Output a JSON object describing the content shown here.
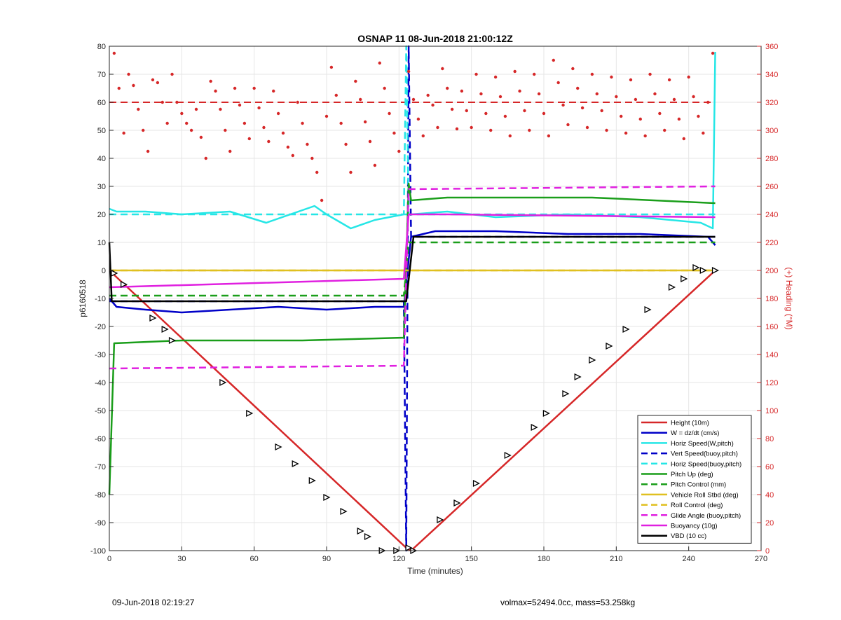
{
  "chart_data": {
    "type": "line",
    "title": "OSNAP 11 08-Jun-2018 21:00:12Z",
    "xlabel": "Time (minutes)",
    "ylabel": "p6160518",
    "y2label": "(+) Heading (°M)",
    "xlim": [
      0,
      270
    ],
    "ylim": [
      -100,
      80
    ],
    "y2lim": [
      0,
      360
    ],
    "xticks": [
      0,
      30,
      60,
      90,
      120,
      150,
      180,
      210,
      240,
      270
    ],
    "yticks": [
      -100,
      -90,
      -80,
      -70,
      -60,
      -50,
      -40,
      -30,
      -20,
      -10,
      0,
      10,
      20,
      30,
      40,
      50,
      60,
      70,
      80
    ],
    "y2ticks": [
      0,
      20,
      40,
      60,
      80,
      100,
      120,
      140,
      160,
      180,
      200,
      220,
      240,
      260,
      280,
      300,
      320,
      340,
      360
    ],
    "grid": true,
    "legend_position": "bottom-right",
    "series": [
      {
        "name": "Height (10m)",
        "color": "#d62728",
        "style": "solid",
        "x": [
          0,
          123,
          125,
          251
        ],
        "y": [
          0,
          -99,
          -100,
          0
        ]
      },
      {
        "name": "W = dz/dt (cm/s)",
        "color": "#0000c8",
        "style": "solid",
        "x": [
          0,
          3,
          15,
          30,
          50,
          70,
          90,
          110,
          122,
          125,
          135,
          160,
          190,
          220,
          248,
          251
        ],
        "y": [
          -10,
          -13,
          -14,
          -15,
          -14,
          -13,
          -14,
          -13,
          -13,
          12,
          14,
          14,
          13,
          13,
          12,
          9
        ]
      },
      {
        "name": "Horiz Speed(W,pitch)",
        "color": "#26e6e6",
        "style": "solid",
        "x": [
          0,
          3,
          15,
          30,
          50,
          65,
          85,
          90,
          100,
          110,
          122,
          125,
          140,
          160,
          190,
          220,
          245,
          250,
          251
        ],
        "y": [
          22,
          21,
          21,
          20,
          21,
          17,
          23,
          20,
          15,
          18,
          20,
          20,
          21,
          19,
          20,
          19,
          17,
          15,
          78
        ]
      },
      {
        "name": "Vert Speed(buoy,pitch)",
        "color": "#0000c8",
        "style": "dashed",
        "x": [
          0,
          122,
          123,
          124,
          125,
          251
        ],
        "y": [
          -11,
          -11,
          -100,
          80,
          12,
          12
        ]
      },
      {
        "name": "Horiz Speed(buoy,pitch)",
        "color": "#26e6e6",
        "style": "dashed",
        "x": [
          0,
          122,
          123,
          124,
          251
        ],
        "y": [
          20,
          20,
          80,
          20,
          20
        ]
      },
      {
        "name": "Pitch Up (deg)",
        "color": "#1a9e1a",
        "style": "solid",
        "x": [
          0,
          2,
          30,
          80,
          122,
          124,
          125,
          140,
          200,
          251
        ],
        "y": [
          -80,
          -26,
          -25,
          -25,
          -24,
          31,
          25,
          26,
          26,
          24
        ]
      },
      {
        "name": "Pitch Control (mm)",
        "color": "#1a9e1a",
        "style": "dashed",
        "x": [
          0,
          122,
          124,
          251
        ],
        "y": [
          -9,
          -9,
          10,
          10
        ]
      },
      {
        "name": "Vehicle Roll Stbd (deg)",
        "color": "#e0c020",
        "style": "solid",
        "x": [
          0,
          50,
          100,
          122,
          125,
          180,
          251
        ],
        "y": [
          0,
          0,
          0,
          0,
          0,
          0,
          0
        ]
      },
      {
        "name": "Roll Control (deg)",
        "color": "#e0c020",
        "style": "dashed",
        "x": [
          0,
          122,
          125,
          251
        ],
        "y": [
          0,
          0,
          0,
          0
        ]
      },
      {
        "name": "Glide Angle (buoy,pitch)",
        "color": "#e020e0",
        "style": "dashed",
        "x": [
          0,
          122,
          124,
          251
        ],
        "y": [
          -35,
          -34,
          29,
          30
        ]
      },
      {
        "name": "Buoyancy (10g)",
        "color": "#e020e0",
        "style": "solid",
        "x": [
          0,
          122,
          124,
          140,
          251
        ],
        "y": [
          -6,
          -3,
          20,
          20,
          19
        ]
      },
      {
        "name": "VBD (10 cc)",
        "color": "#000000",
        "style": "solid",
        "x": [
          0,
          1,
          123,
          126,
          251
        ],
        "y": [
          10,
          -11,
          -11,
          12,
          12
        ]
      }
    ],
    "heading_reference": {
      "value": 320,
      "color": "#d62728",
      "style": "dashed",
      "axis": "right"
    },
    "heading_points": {
      "color": "#d62728",
      "axis": "right",
      "x": [
        2,
        4,
        6,
        8,
        10,
        12,
        14,
        16,
        18,
        20,
        22,
        24,
        26,
        28,
        30,
        32,
        34,
        36,
        38,
        40,
        42,
        44,
        46,
        48,
        50,
        52,
        54,
        56,
        58,
        60,
        62,
        64,
        66,
        68,
        70,
        72,
        74,
        76,
        78,
        80,
        82,
        84,
        86,
        88,
        90,
        92,
        94,
        96,
        98,
        100,
        102,
        104,
        106,
        108,
        110,
        112,
        114,
        116,
        118,
        120,
        124,
        126,
        128,
        130,
        132,
        134,
        136,
        138,
        140,
        142,
        144,
        146,
        148,
        150,
        152,
        154,
        156,
        158,
        160,
        162,
        164,
        166,
        168,
        170,
        172,
        174,
        176,
        178,
        180,
        182,
        184,
        186,
        188,
        190,
        192,
        194,
        196,
        198,
        200,
        202,
        204,
        206,
        208,
        210,
        212,
        214,
        216,
        218,
        220,
        222,
        224,
        226,
        228,
        230,
        232,
        234,
        236,
        238,
        240,
        242,
        244,
        246,
        248,
        250
      ],
      "y": [
        355,
        330,
        298,
        340,
        332,
        315,
        300,
        285,
        336,
        334,
        320,
        305,
        340,
        320,
        312,
        305,
        300,
        315,
        295,
        280,
        335,
        328,
        315,
        300,
        285,
        330,
        318,
        305,
        294,
        330,
        316,
        302,
        292,
        328,
        312,
        298,
        288,
        282,
        320,
        305,
        290,
        280,
        270,
        250,
        310,
        345,
        325,
        305,
        290,
        270,
        335,
        322,
        306,
        292,
        275,
        348,
        330,
        312,
        298,
        285,
        342,
        322,
        308,
        296,
        325,
        318,
        302,
        344,
        330,
        315,
        301,
        328,
        314,
        302,
        340,
        326,
        312,
        300,
        338,
        324,
        310,
        296,
        342,
        328,
        314,
        300,
        340,
        326,
        312,
        296,
        350,
        334,
        318,
        304,
        344,
        330,
        316,
        302,
        340,
        326,
        314,
        300,
        338,
        324,
        310,
        298,
        336,
        322,
        308,
        296,
        340,
        326,
        312,
        300,
        336,
        322,
        308,
        294,
        338,
        324,
        310,
        298,
        320,
        355
      ]
    },
    "markers": {
      "color": "#000000",
      "x": [
        2,
        6,
        18,
        23,
        26,
        47,
        58,
        70,
        77,
        84,
        90,
        97,
        104,
        107,
        113,
        119,
        124,
        126,
        137,
        144,
        152,
        165,
        176,
        181,
        189,
        194,
        200,
        207,
        214,
        223,
        233,
        238,
        243,
        246,
        251
      ],
      "y": [
        -1,
        -5,
        -17,
        -21,
        -25,
        -40,
        -51,
        -63,
        -69,
        -75,
        -81,
        -86,
        -93,
        -95,
        -100,
        -100,
        -99,
        -100,
        -89,
        -83,
        -76,
        -66,
        -56,
        -51,
        -44,
        -38,
        -32,
        -27,
        -21,
        -14,
        -6,
        -3,
        1,
        0,
        0
      ]
    }
  },
  "footer": {
    "left": "09-Jun-2018 02:19:27",
    "right": "volmax=52494.0cc, mass=53.258kg"
  }
}
